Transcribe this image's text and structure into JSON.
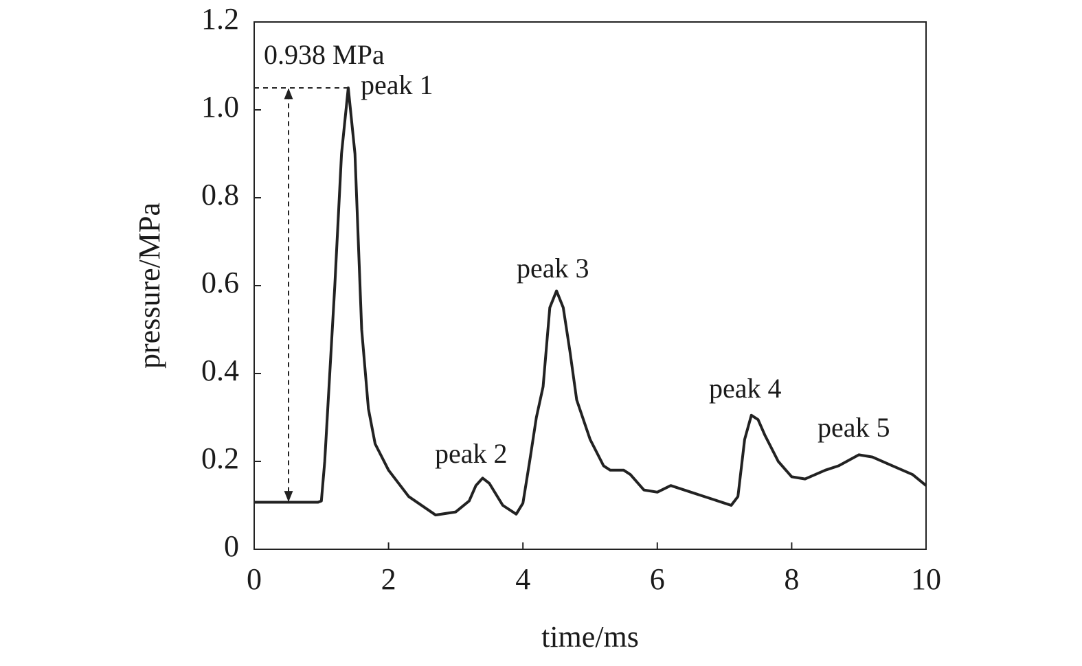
{
  "chart_data": {
    "type": "line",
    "xlabel": "time/ms",
    "ylabel": "pressure/MPa",
    "x": [
      0,
      0.95,
      1.0,
      1.05,
      1.2,
      1.3,
      1.4,
      1.5,
      1.6,
      1.7,
      1.8,
      2.0,
      2.3,
      2.7,
      3.0,
      3.2,
      3.3,
      3.4,
      3.5,
      3.7,
      3.9,
      4.0,
      4.1,
      4.2,
      4.3,
      4.4,
      4.5,
      4.6,
      4.7,
      4.8,
      5.0,
      5.2,
      5.3,
      5.5,
      5.6,
      5.8,
      6.0,
      6.2,
      6.5,
      6.8,
      7.0,
      7.1,
      7.2,
      7.3,
      7.4,
      7.5,
      7.6,
      7.8,
      8.0,
      8.2,
      8.5,
      8.7,
      9.0,
      9.2,
      9.5,
      9.8,
      10
    ],
    "series": [
      {
        "name": "pressure",
        "color": "#222222",
        "values": [
          0.107,
          0.107,
          0.11,
          0.2,
          0.6,
          0.9,
          1.05,
          0.9,
          0.5,
          0.32,
          0.24,
          0.18,
          0.12,
          0.078,
          0.085,
          0.11,
          0.145,
          0.162,
          0.15,
          0.1,
          0.08,
          0.105,
          0.2,
          0.3,
          0.37,
          0.55,
          0.588,
          0.55,
          0.45,
          0.34,
          0.25,
          0.19,
          0.18,
          0.18,
          0.17,
          0.135,
          0.13,
          0.145,
          0.13,
          0.115,
          0.105,
          0.1,
          0.12,
          0.25,
          0.305,
          0.295,
          0.26,
          0.2,
          0.165,
          0.16,
          0.18,
          0.19,
          0.215,
          0.21,
          0.19,
          0.17,
          0.145
        ]
      }
    ],
    "annotations": [
      "0.938 MPa",
      "peak 1",
      "peak 2",
      "peak 3",
      "peak 4",
      "peak 5"
    ],
    "xlim": [
      0,
      10
    ],
    "xticks": [
      0,
      2,
      4,
      6,
      8,
      10
    ],
    "ylim": [
      0,
      1.2
    ],
    "yticks": [
      0,
      0.2,
      0.4,
      0.6,
      0.8,
      {
        "value": 1,
        "label": "1.0"
      },
      1.2
    ],
    "grid": false
  }
}
